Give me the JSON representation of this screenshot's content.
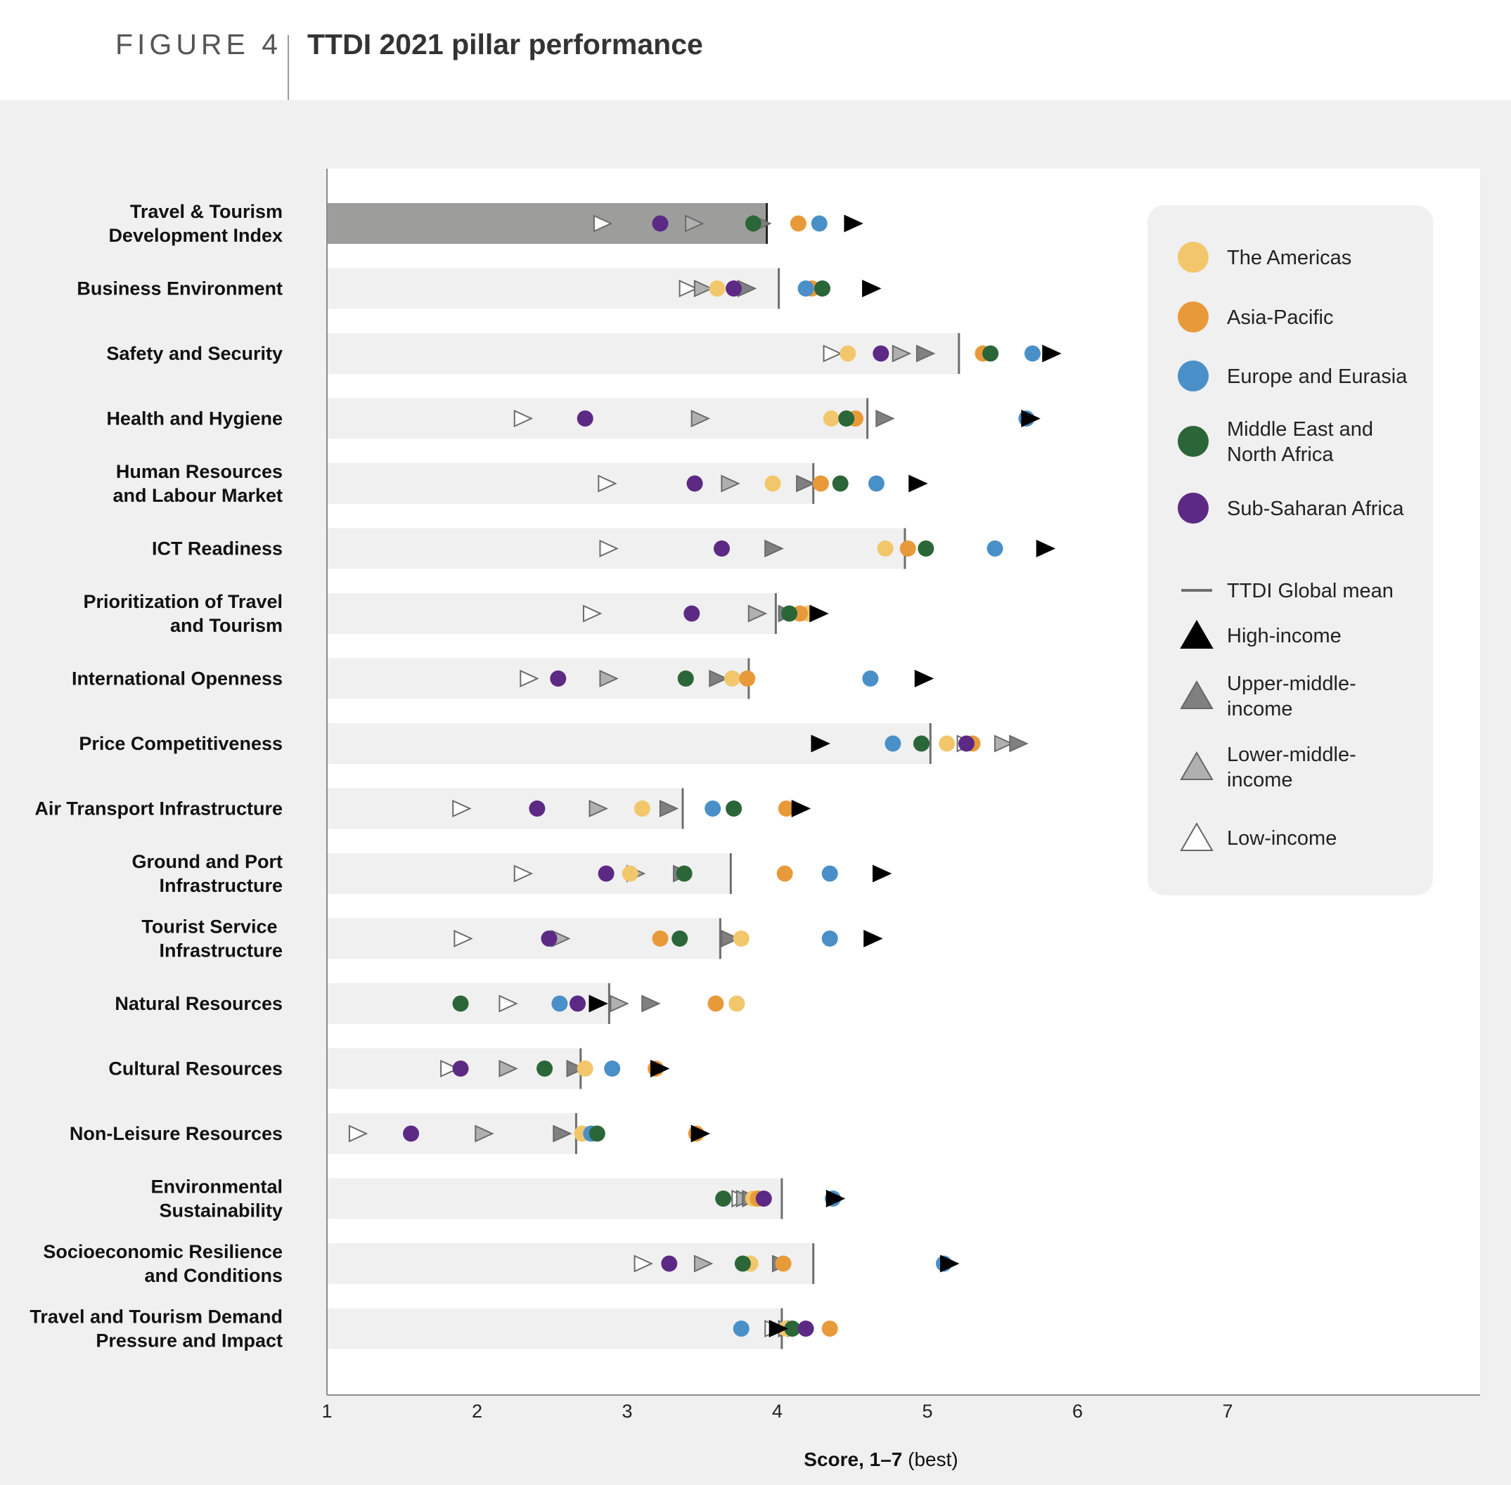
{
  "figure": {
    "label": "FIGURE 4",
    "title": "TTDI 2021 pillar performance"
  },
  "chart_data": {
    "type": "scatter",
    "xlabel_bold": "Score, 1–7",
    "xlabel_suffix": " (best)",
    "xlim": [
      1,
      7
    ],
    "x_ticks": [
      "1",
      "2",
      "3",
      "4",
      "5",
      "6",
      "7"
    ],
    "colors": {
      "The Americas": "#f2c76b",
      "Asia-Pacific": "#e89a3a",
      "Europe and Eurasia": "#4a90c8",
      "Middle East and North Africa": "#2b6638",
      "Sub-Saharan Africa": "#5c2a84",
      "bar_highlight": "#9d9d9b",
      "bar_default": "#f0f0f0",
      "mean_line": "#6e6e6e",
      "High-income": "#000000",
      "Upper-middle-income": "#808080",
      "Lower-middle-income": "#b0b0b0",
      "Low-income": "#ffffff"
    },
    "legend": {
      "regions": [
        {
          "key": "The Americas",
          "label": "The Americas"
        },
        {
          "key": "Asia-Pacific",
          "label": "Asia-Pacific"
        },
        {
          "key": "Europe and Eurasia",
          "label": "Europe and Eurasia"
        },
        {
          "key": "Middle East and North Africa",
          "label": "Middle East and\nNorth Africa"
        },
        {
          "key": "Sub-Saharan Africa",
          "label": "Sub-Saharan Africa"
        }
      ],
      "mean": "TTDI Global mean",
      "income": [
        {
          "key": "High-income",
          "label": "High-income"
        },
        {
          "key": "Upper-middle-income",
          "label": "Upper-middle-\nincome"
        },
        {
          "key": "Lower-middle-income",
          "label": "Lower-middle-\nincome"
        },
        {
          "key": "Low-income",
          "label": "Low-income"
        }
      ]
    },
    "pillars": [
      {
        "label": "Travel & Tourism\nDevelopment Index",
        "mean": 3.93,
        "highlight": true,
        "regions": {
          "The Americas": 3.84,
          "Asia-Pacific": 4.14,
          "Europe and Eurasia": 4.28,
          "Middle East and North Africa": 3.84,
          "Sub-Saharan Africa": 3.22
        },
        "income": {
          "High-income": 4.5,
          "Upper-middle-income": 3.89,
          "Lower-middle-income": 3.44,
          "Low-income": 2.83
        }
      },
      {
        "label": "Business Environment",
        "mean": 4.01,
        "regions": {
          "The Americas": 3.6,
          "Asia-Pacific": 4.23,
          "Europe and Eurasia": 4.19,
          "Middle East and North Africa": 4.3,
          "Sub-Saharan Africa": 3.71
        },
        "income": {
          "High-income": 4.62,
          "Upper-middle-income": 3.79,
          "Lower-middle-income": 3.5,
          "Low-income": 3.4
        }
      },
      {
        "label": "Safety and Security",
        "mean": 5.21,
        "regions": {
          "The Americas": 4.47,
          "Asia-Pacific": 5.37,
          "Europe and Eurasia": 5.7,
          "Middle East and North Africa": 5.42,
          "Sub-Saharan Africa": 4.69
        },
        "income": {
          "High-income": 5.82,
          "Upper-middle-income": 4.98,
          "Lower-middle-income": 4.82,
          "Low-income": 4.36
        }
      },
      {
        "label": "Health and Hygiene",
        "mean": 4.6,
        "regions": {
          "The Americas": 4.36,
          "Asia-Pacific": 4.52,
          "Europe and Eurasia": 5.66,
          "Middle East and North Africa": 4.46,
          "Sub-Saharan Africa": 2.72
        },
        "income": {
          "High-income": 5.68,
          "Upper-middle-income": 4.71,
          "Lower-middle-income": 3.48,
          "Low-income": 2.3
        }
      },
      {
        "label": "Human Resources\nand Labour Market",
        "mean": 4.24,
        "regions": {
          "The Americas": 3.97,
          "Asia-Pacific": 4.29,
          "Europe and Eurasia": 4.66,
          "Middle East and North Africa": 4.42,
          "Sub-Saharan Africa": 3.45
        },
        "income": {
          "High-income": 4.93,
          "Upper-middle-income": 4.18,
          "Lower-middle-income": 3.68,
          "Low-income": 2.86
        }
      },
      {
        "label": "ICT Readiness",
        "mean": 4.85,
        "regions": {
          "The Americas": 4.72,
          "Asia-Pacific": 4.87,
          "Europe and Eurasia": 5.45,
          "Middle East and North Africa": 4.99,
          "Sub-Saharan Africa": 3.63
        },
        "income": {
          "High-income": 5.78,
          "Upper-middle-income": 3.97,
          "Lower-middle-income": 3.97,
          "Low-income": 2.87
        }
      },
      {
        "label": "Prioritization of Travel\nand Tourism",
        "mean": 3.99,
        "regions": {
          "The Americas": 4.21,
          "Asia-Pacific": 4.15,
          "Europe and Eurasia": 4.08,
          "Middle East and North Africa": 4.08,
          "Sub-Saharan Africa": 3.43
        },
        "income": {
          "High-income": 4.27,
          "Upper-middle-income": 4.06,
          "Lower-middle-income": 3.86,
          "Low-income": 2.76
        }
      },
      {
        "label": "International Openness",
        "mean": 3.81,
        "regions": {
          "The Americas": 3.7,
          "Asia-Pacific": 3.8,
          "Europe and Eurasia": 4.62,
          "Middle East and North Africa": 3.39,
          "Sub-Saharan Africa": 2.54
        },
        "income": {
          "High-income": 4.97,
          "Upper-middle-income": 3.6,
          "Lower-middle-income": 2.87,
          "Low-income": 2.34
        }
      },
      {
        "label": "Price Competitiveness",
        "mean": 5.02,
        "regions": {
          "The Americas": 5.13,
          "Asia-Pacific": 5.3,
          "Europe and Eurasia": 4.77,
          "Middle East and North Africa": 4.96,
          "Sub-Saharan Africa": 5.26
        },
        "income": {
          "High-income": 4.28,
          "Upper-middle-income": 5.6,
          "Lower-middle-income": 5.5,
          "Low-income": 5.25
        }
      },
      {
        "label": "Air Transport Infrastructure",
        "mean": 3.37,
        "regions": {
          "The Americas": 3.1,
          "Asia-Pacific": 4.06,
          "Europe and Eurasia": 3.57,
          "Middle East and North Africa": 3.71,
          "Sub-Saharan Africa": 2.4
        },
        "income": {
          "High-income": 4.15,
          "Upper-middle-income": 3.27,
          "Lower-middle-income": 2.8,
          "Low-income": 1.89
        }
      },
      {
        "label": "Ground and Port\nInfrastructure",
        "mean": 3.69,
        "regions": {
          "The Americas": 3.02,
          "Asia-Pacific": 4.05,
          "Europe and Eurasia": 4.35,
          "Middle East and North Africa": 3.38,
          "Sub-Saharan Africa": 2.86
        },
        "income": {
          "High-income": 4.69,
          "Upper-middle-income": 3.36,
          "Lower-middle-income": 3.05,
          "Low-income": 2.3
        }
      },
      {
        "label": "Tourist Service \nInfrastructure",
        "mean": 3.62,
        "regions": {
          "The Americas": 3.76,
          "Asia-Pacific": 3.22,
          "Europe and Eurasia": 4.35,
          "Middle East and North Africa": 3.35,
          "Sub-Saharan Africa": 2.48
        },
        "income": {
          "High-income": 4.63,
          "Upper-middle-income": 3.68,
          "Lower-middle-income": 2.55,
          "Low-income": 1.9
        }
      },
      {
        "label": "Natural Resources",
        "mean": 2.88,
        "regions": {
          "The Americas": 3.73,
          "Asia-Pacific": 3.59,
          "Europe and Eurasia": 2.55,
          "Middle East and North Africa": 1.89,
          "Sub-Saharan Africa": 2.67
        },
        "income": {
          "High-income": 2.8,
          "Upper-middle-income": 3.15,
          "Lower-middle-income": 2.94,
          "Low-income": 2.2
        }
      },
      {
        "label": "Cultural Resources",
        "mean": 2.69,
        "regions": {
          "The Americas": 2.72,
          "Asia-Pacific": 3.19,
          "Europe and Eurasia": 2.9,
          "Middle East and North Africa": 2.45,
          "Sub-Saharan Africa": 1.89
        },
        "income": {
          "High-income": 3.21,
          "Upper-middle-income": 2.65,
          "Lower-middle-income": 2.2,
          "Low-income": 1.81
        }
      },
      {
        "label": "Non-Leisure Resources",
        "mean": 2.66,
        "regions": {
          "The Americas": 2.7,
          "Asia-Pacific": 3.46,
          "Europe and Eurasia": 2.76,
          "Middle East and North Africa": 2.8,
          "Sub-Saharan Africa": 1.56
        },
        "income": {
          "High-income": 3.48,
          "Upper-middle-income": 2.56,
          "Lower-middle-income": 2.04,
          "Low-income": 1.2
        }
      },
      {
        "label": "Environmental\nSustainability",
        "mean": 4.03,
        "regions": {
          "The Americas": 3.84,
          "Asia-Pacific": 3.87,
          "Europe and Eurasia": 4.37,
          "Middle East and North Africa": 3.64,
          "Sub-Saharan Africa": 3.91
        },
        "income": {
          "High-income": 4.38,
          "Upper-middle-income": 3.82,
          "Lower-middle-income": 3.78,
          "Low-income": 3.75
        }
      },
      {
        "label": "Socioeconomic Resilience\nand Conditions",
        "mean": 4.24,
        "regions": {
          "The Americas": 3.82,
          "Asia-Pacific": 4.04,
          "Europe and Eurasia": 5.11,
          "Middle East and North Africa": 3.77,
          "Sub-Saharan Africa": 3.28
        },
        "income": {
          "High-income": 5.14,
          "Upper-middle-income": 4.02,
          "Lower-middle-income": 3.5,
          "Low-income": 3.1
        }
      },
      {
        "label": "Travel and Tourism Demand\nPressure and Impact",
        "mean": 4.03,
        "regions": {
          "The Americas": 4.06,
          "Asia-Pacific": 4.35,
          "Europe and Eurasia": 3.76,
          "Middle East and North Africa": 4.1,
          "Sub-Saharan Africa": 4.19
        },
        "income": {
          "High-income": 4.0,
          "Upper-middle-income": 4.12,
          "Lower-middle-income": 4.06,
          "Low-income": 3.97
        }
      }
    ]
  }
}
